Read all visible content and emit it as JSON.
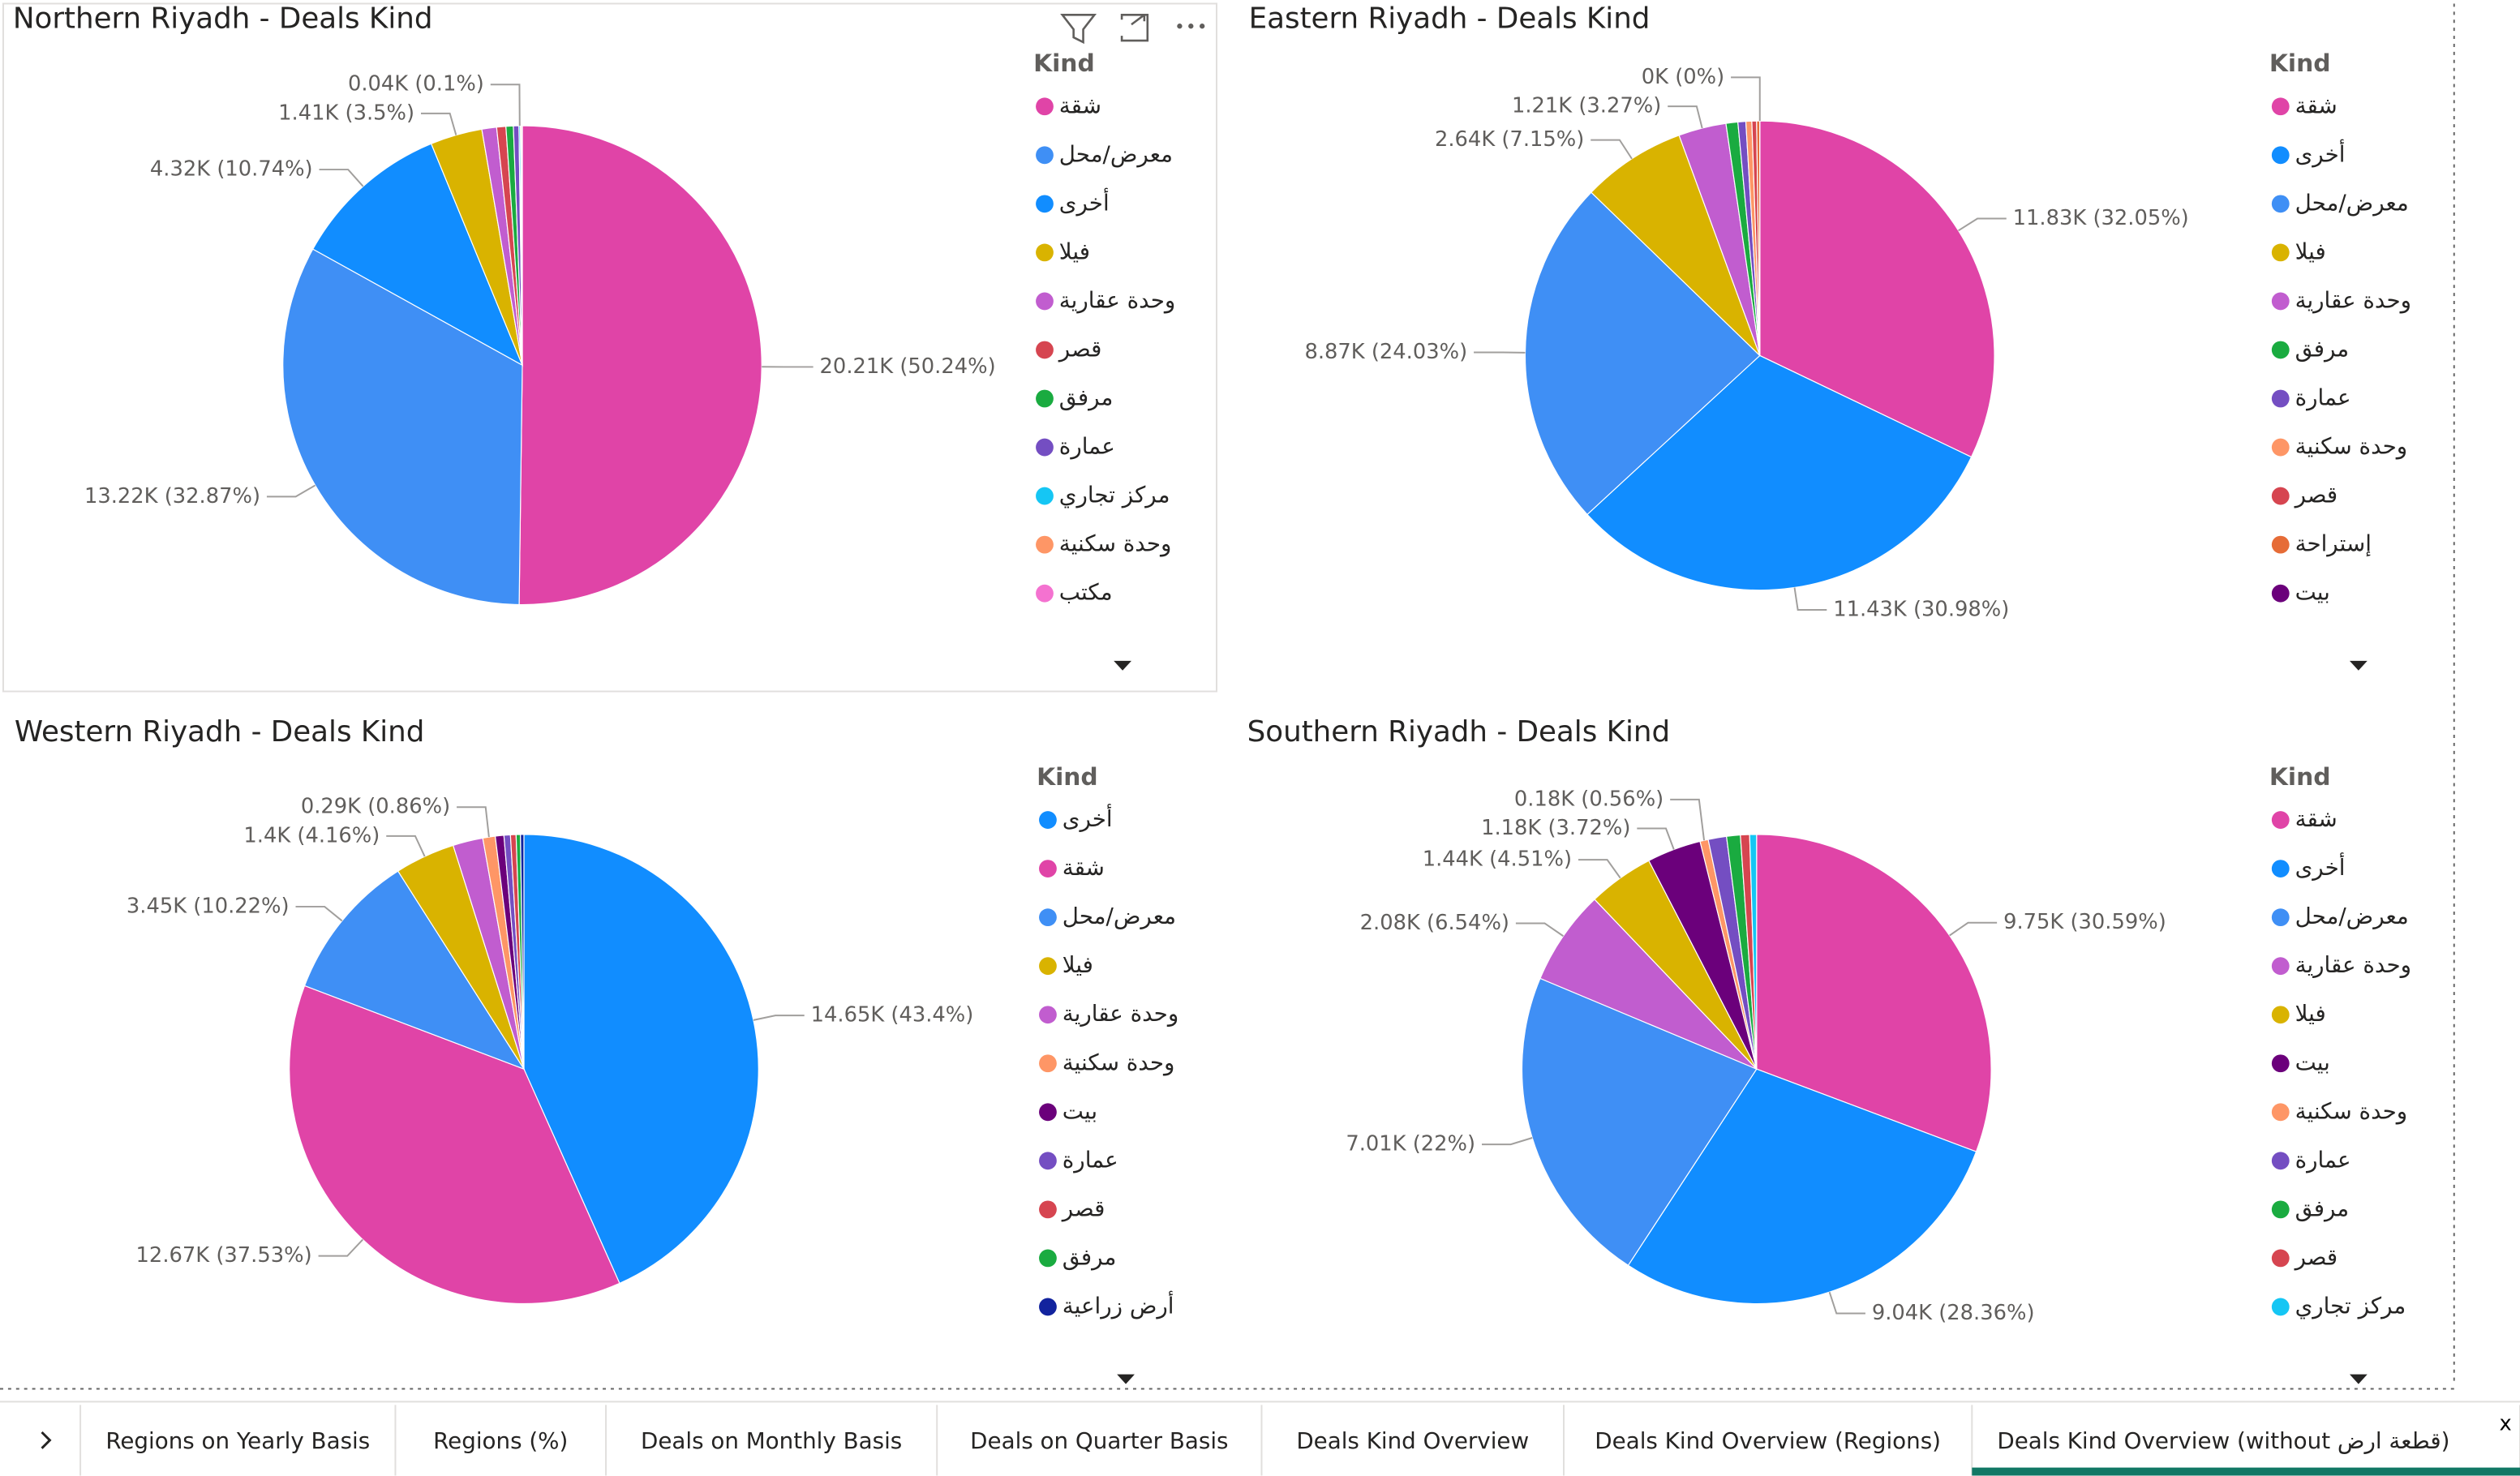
{
  "chart_data": [
    {
      "type": "pie",
      "title": "Northern Riyadh - Deals Kind",
      "legend_title": "Kind",
      "categories": [
        "شقة",
        "معرض/محل",
        "أخرى",
        "فيلا",
        "وحدة عقارية",
        "قصر",
        "مرفق",
        "عمارة",
        "مركز تجاري",
        "وحدة سكنية",
        "مكتب"
      ],
      "values": [
        20210,
        13220,
        4320,
        1410,
        400,
        250,
        200,
        150,
        40,
        30,
        20
      ],
      "value_labels": [
        "20.21K (50.24%)",
        "13.22K (32.87%)",
        "4.32K (10.74%)",
        "1.41K (3.5%)",
        null,
        null,
        null,
        null,
        "0.04K (0.1%)",
        null,
        null
      ],
      "colors": [
        "#E044A7",
        "#3F8FF5",
        "#118DFF",
        "#D9B300",
        "#C15DCF",
        "#D64550",
        "#1AAB40",
        "#744EC2",
        "#15C6F4",
        "#FE9666",
        "#F472D0"
      ]
    },
    {
      "type": "pie",
      "title": "Eastern Riyadh - Deals Kind",
      "legend_title": "Kind",
      "categories": [
        "شقة",
        "أخرى",
        "معرض/محل",
        "فيلا",
        "وحدة عقارية",
        "مرفق",
        "عمارة",
        "وحدة سكنية",
        "قصر",
        "إستراحة",
        "بيت"
      ],
      "values": [
        11830,
        11430,
        8870,
        2640,
        1210,
        300,
        200,
        150,
        120,
        80,
        0
      ],
      "value_labels": [
        "11.83K (32.05%)",
        "11.43K (30.98%)",
        "8.87K (24.03%)",
        "2.64K (7.15%)",
        "1.21K (3.27%)",
        null,
        null,
        null,
        null,
        null,
        "0K (0%)"
      ],
      "colors": [
        "#E044A7",
        "#118DFF",
        "#3F8FF5",
        "#D9B300",
        "#C15DCF",
        "#1AAB40",
        "#744EC2",
        "#FE9666",
        "#D64550",
        "#E66C37",
        "#6B007B"
      ]
    },
    {
      "type": "pie",
      "title": "Western Riyadh - Deals Kind",
      "legend_title": "Kind",
      "categories": [
        "أخرى",
        "شقة",
        "معرض/محل",
        "فيلا",
        "وحدة عقارية",
        "وحدة سكنية",
        "بيت",
        "عمارة",
        "قصر",
        "مرفق",
        "أرض زراعية"
      ],
      "values": [
        14650,
        12670,
        3450,
        1400,
        700,
        290,
        200,
        150,
        130,
        100,
        80
      ],
      "value_labels": [
        "14.65K (43.4%)",
        "12.67K (37.53%)",
        "3.45K (10.22%)",
        "1.4K (4.16%)",
        null,
        "0.29K (0.86%)",
        null,
        null,
        null,
        null,
        null
      ],
      "colors": [
        "#118DFF",
        "#E044A7",
        "#3F8FF5",
        "#D9B300",
        "#C15DCF",
        "#FE9666",
        "#6B007B",
        "#744EC2",
        "#D64550",
        "#1AAB40",
        "#12239E"
      ]
    },
    {
      "type": "pie",
      "title": "Southern Riyadh - Deals Kind",
      "legend_title": "Kind",
      "categories": [
        "شقة",
        "أخرى",
        "معرض/محل",
        "وحدة عقارية",
        "فيلا",
        "بيت",
        "وحدة سكنية",
        "عمارة",
        "مرفق",
        "قصر",
        "مركز تجاري"
      ],
      "values": [
        9750,
        9040,
        7010,
        2080,
        1440,
        1180,
        180,
        400,
        300,
        200,
        150
      ],
      "value_labels": [
        "9.75K (30.59%)",
        "9.04K (28.36%)",
        "7.01K (22%)",
        "2.08K (6.54%)",
        "1.44K (4.51%)",
        "1.18K (3.72%)",
        "0.18K (0.56%)",
        null,
        null,
        null,
        null
      ],
      "colors": [
        "#E044A7",
        "#118DFF",
        "#3F8FF5",
        "#C15DCF",
        "#D9B300",
        "#6B007B",
        "#FE9666",
        "#744EC2",
        "#1AAB40",
        "#D64550",
        "#15C6F4"
      ]
    }
  ],
  "tabs": [
    "Regions on Yearly Basis",
    "Regions (%)",
    "Deals on Monthly Basis",
    "Deals on Quarter Basis",
    "Deals Kind Overview",
    "Deals Kind Overview (Regions)",
    "Deals Kind Overview (without قطعة ارض)"
  ]
}
